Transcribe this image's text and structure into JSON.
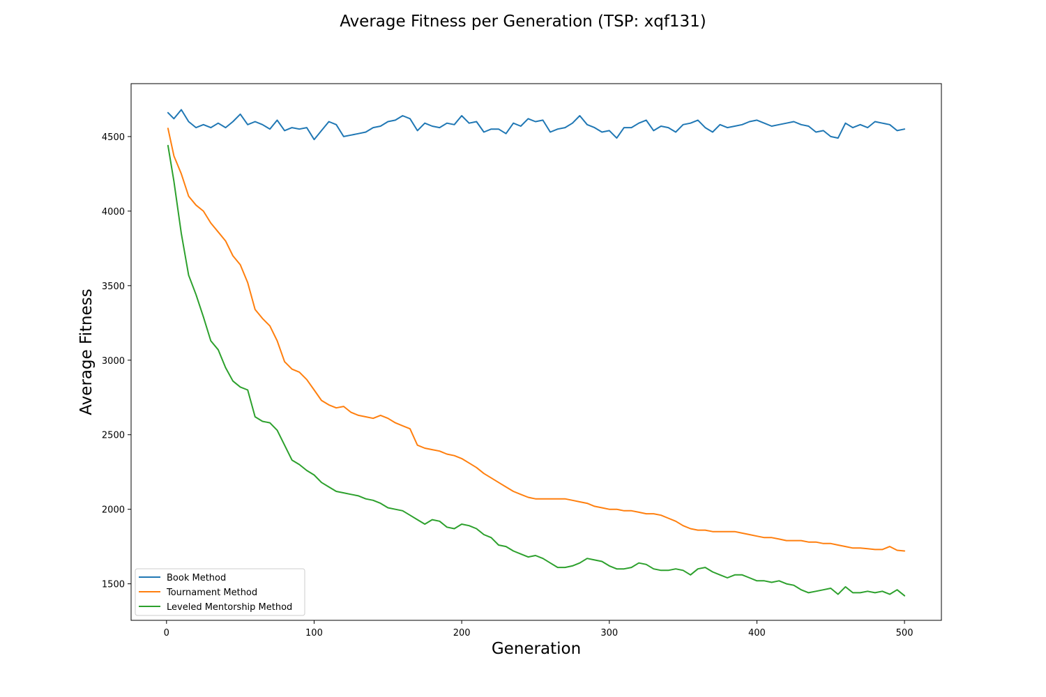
{
  "chart_data": {
    "type": "line",
    "title": "Average Fitness per Generation (TSP: xqf131)",
    "xlabel": "Generation",
    "ylabel": "Average Fitness",
    "xlim": [
      -24,
      525
    ],
    "ylim": [
      1255,
      4855
    ],
    "xticks": [
      0,
      100,
      200,
      300,
      400,
      500
    ],
    "yticks": [
      1500,
      2000,
      2500,
      3000,
      3500,
      4000,
      4500
    ],
    "grid": false,
    "legend_position": "lower-left",
    "series": [
      {
        "name": "Book Method",
        "color": "#1f77b4",
        "x": [
          1,
          5,
          10,
          15,
          20,
          25,
          30,
          35,
          40,
          45,
          50,
          55,
          60,
          65,
          70,
          75,
          80,
          85,
          90,
          95,
          100,
          105,
          110,
          115,
          120,
          125,
          130,
          135,
          140,
          145,
          150,
          155,
          160,
          165,
          170,
          175,
          180,
          185,
          190,
          195,
          200,
          205,
          210,
          215,
          220,
          225,
          230,
          235,
          240,
          245,
          250,
          255,
          260,
          265,
          270,
          275,
          280,
          285,
          290,
          295,
          300,
          305,
          310,
          315,
          320,
          325,
          330,
          335,
          340,
          345,
          350,
          355,
          360,
          365,
          370,
          375,
          380,
          385,
          390,
          395,
          400,
          405,
          410,
          415,
          420,
          425,
          430,
          435,
          440,
          445,
          450,
          455,
          460,
          465,
          470,
          475,
          480,
          485,
          490,
          495,
          500
        ],
        "y": [
          4660,
          4620,
          4680,
          4600,
          4560,
          4580,
          4560,
          4590,
          4560,
          4600,
          4650,
          4580,
          4600,
          4580,
          4550,
          4610,
          4540,
          4560,
          4550,
          4560,
          4480,
          4540,
          4600,
          4580,
          4500,
          4510,
          4520,
          4530,
          4560,
          4570,
          4600,
          4610,
          4640,
          4620,
          4540,
          4590,
          4570,
          4560,
          4590,
          4580,
          4640,
          4590,
          4600,
          4530,
          4550,
          4550,
          4520,
          4590,
          4570,
          4620,
          4600,
          4610,
          4530,
          4550,
          4560,
          4590,
          4640,
          4580,
          4560,
          4530,
          4540,
          4490,
          4560,
          4560,
          4590,
          4610,
          4540,
          4570,
          4560,
          4530,
          4580,
          4590,
          4610,
          4560,
          4530,
          4580,
          4560,
          4570,
          4580,
          4600,
          4610,
          4590,
          4570,
          4580,
          4590,
          4600,
          4580,
          4570,
          4530,
          4540,
          4500,
          4490,
          4590,
          4560,
          4580,
          4560,
          4600,
          4590,
          4580,
          4540,
          4550
        ]
      },
      {
        "name": "Tournament Method",
        "color": "#ff7f0e",
        "x": [
          1,
          5,
          10,
          15,
          20,
          25,
          30,
          35,
          40,
          45,
          50,
          55,
          60,
          65,
          70,
          75,
          80,
          85,
          90,
          95,
          100,
          105,
          110,
          115,
          120,
          125,
          130,
          135,
          140,
          145,
          150,
          155,
          160,
          165,
          170,
          175,
          180,
          185,
          190,
          195,
          200,
          205,
          210,
          215,
          220,
          225,
          230,
          235,
          240,
          245,
          250,
          255,
          260,
          265,
          270,
          275,
          280,
          285,
          290,
          295,
          300,
          305,
          310,
          315,
          320,
          325,
          330,
          335,
          340,
          345,
          350,
          355,
          360,
          365,
          370,
          375,
          380,
          385,
          390,
          395,
          400,
          405,
          410,
          415,
          420,
          425,
          430,
          435,
          440,
          445,
          450,
          455,
          460,
          465,
          470,
          475,
          480,
          485,
          490,
          495,
          500
        ],
        "y": [
          4555,
          4370,
          4250,
          4100,
          4040,
          4000,
          3920,
          3860,
          3800,
          3700,
          3640,
          3520,
          3340,
          3280,
          3230,
          3130,
          2990,
          2940,
          2920,
          2870,
          2800,
          2730,
          2700,
          2680,
          2690,
          2650,
          2630,
          2620,
          2610,
          2630,
          2610,
          2580,
          2560,
          2540,
          2430,
          2410,
          2400,
          2390,
          2370,
          2360,
          2340,
          2310,
          2280,
          2240,
          2210,
          2180,
          2150,
          2120,
          2100,
          2080,
          2070,
          2070,
          2070,
          2070,
          2070,
          2060,
          2050,
          2040,
          2020,
          2010,
          2000,
          2000,
          1990,
          1990,
          1980,
          1970,
          1970,
          1960,
          1940,
          1920,
          1890,
          1870,
          1860,
          1860,
          1850,
          1850,
          1850,
          1850,
          1840,
          1830,
          1820,
          1810,
          1810,
          1800,
          1790,
          1790,
          1790,
          1780,
          1780,
          1770,
          1770,
          1760,
          1750,
          1740,
          1740,
          1735,
          1730,
          1730,
          1750,
          1725,
          1720
        ]
      },
      {
        "name": "Leveled Mentorship Method",
        "color": "#2ca02c",
        "x": [
          1,
          5,
          10,
          15,
          20,
          25,
          30,
          35,
          40,
          45,
          50,
          55,
          60,
          65,
          70,
          75,
          80,
          85,
          90,
          95,
          100,
          105,
          110,
          115,
          120,
          125,
          130,
          135,
          140,
          145,
          150,
          155,
          160,
          165,
          170,
          175,
          180,
          185,
          190,
          195,
          200,
          205,
          210,
          215,
          220,
          225,
          230,
          235,
          240,
          245,
          250,
          255,
          260,
          265,
          270,
          275,
          280,
          285,
          290,
          295,
          300,
          305,
          310,
          315,
          320,
          325,
          330,
          335,
          340,
          345,
          350,
          355,
          360,
          365,
          370,
          375,
          380,
          385,
          390,
          395,
          400,
          405,
          410,
          415,
          420,
          425,
          430,
          435,
          440,
          445,
          450,
          455,
          460,
          465,
          470,
          475,
          480,
          485,
          490,
          495,
          500
        ],
        "y": [
          4440,
          4200,
          3850,
          3570,
          3440,
          3290,
          3130,
          3070,
          2950,
          2860,
          2820,
          2800,
          2620,
          2590,
          2580,
          2530,
          2430,
          2330,
          2300,
          2260,
          2230,
          2180,
          2150,
          2120,
          2110,
          2100,
          2090,
          2070,
          2060,
          2040,
          2010,
          2000,
          1990,
          1960,
          1930,
          1900,
          1930,
          1920,
          1880,
          1870,
          1900,
          1890,
          1870,
          1830,
          1810,
          1760,
          1750,
          1720,
          1700,
          1680,
          1690,
          1670,
          1640,
          1610,
          1610,
          1620,
          1640,
          1670,
          1660,
          1650,
          1620,
          1600,
          1600,
          1610,
          1640,
          1630,
          1600,
          1590,
          1590,
          1600,
          1590,
          1560,
          1600,
          1610,
          1580,
          1560,
          1540,
          1560,
          1560,
          1540,
          1520,
          1520,
          1510,
          1520,
          1500,
          1490,
          1460,
          1440,
          1450,
          1460,
          1470,
          1430,
          1480,
          1440,
          1440,
          1450,
          1440,
          1450,
          1430,
          1460,
          1420
        ]
      }
    ]
  }
}
